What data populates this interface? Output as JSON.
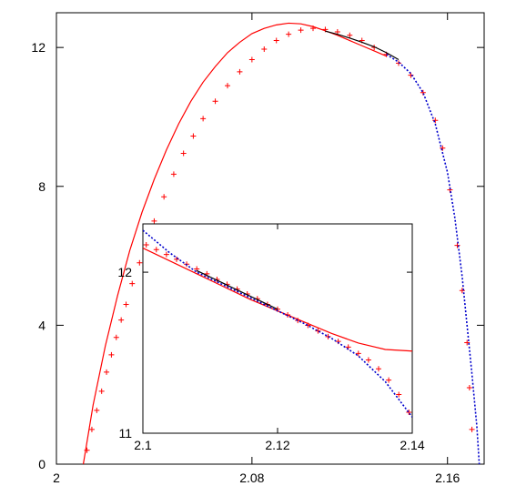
{
  "chart_data": [
    {
      "type": "line",
      "panel": "main",
      "title": "",
      "xlabel": "",
      "ylabel": "",
      "xlim": [
        2.0,
        2.175
      ],
      "ylim": [
        0,
        13
      ],
      "xticks": [
        2.0,
        2.08,
        2.16
      ],
      "xtick_labels": [
        "2",
        "2.08",
        "2.16"
      ],
      "yticks": [
        0,
        4,
        8,
        12
      ],
      "ytick_labels": [
        "0",
        "4",
        "8",
        "12"
      ],
      "grid": false,
      "legend": "none",
      "series": [
        {
          "style": "markers-plus",
          "color": "#ff0000",
          "x": [
            2.0125,
            2.0145,
            2.0165,
            2.0185,
            2.0205,
            2.0225,
            2.0245,
            2.0265,
            2.0285,
            2.031,
            2.034,
            2.037,
            2.04,
            2.044,
            2.048,
            2.052,
            2.056,
            2.06,
            2.065,
            2.07,
            2.075,
            2.08,
            2.085,
            2.09,
            2.095,
            2.1,
            2.105,
            2.11,
            2.115,
            2.12,
            2.125,
            2.13,
            2.135,
            2.14,
            2.145,
            2.15,
            2.155,
            2.158,
            2.161,
            2.164,
            2.166,
            2.168,
            2.169,
            2.17
          ],
          "y": [
            0.4,
            1.0,
            1.55,
            2.1,
            2.65,
            3.15,
            3.65,
            4.15,
            4.6,
            5.2,
            5.8,
            6.4,
            7.0,
            7.7,
            8.35,
            8.95,
            9.45,
            9.95,
            10.45,
            10.9,
            11.3,
            11.65,
            11.95,
            12.2,
            12.38,
            12.5,
            12.55,
            12.52,
            12.45,
            12.35,
            12.2,
            12.0,
            11.8,
            11.55,
            11.2,
            10.7,
            9.9,
            9.1,
            7.9,
            6.3,
            5.0,
            3.5,
            2.2,
            1.0
          ]
        },
        {
          "style": "solid",
          "color": "#ff0000",
          "x": [
            2.011,
            2.015,
            2.02,
            2.025,
            2.03,
            2.035,
            2.04,
            2.045,
            2.05,
            2.055,
            2.06,
            2.065,
            2.07,
            2.075,
            2.08,
            2.085,
            2.09,
            2.095,
            2.1,
            2.105,
            2.11,
            2.115,
            2.12,
            2.125,
            2.13,
            2.135
          ],
          "y": [
            0.0,
            1.7,
            3.4,
            4.85,
            6.15,
            7.25,
            8.2,
            9.05,
            9.8,
            10.45,
            11.0,
            11.45,
            11.85,
            12.15,
            12.4,
            12.55,
            12.65,
            12.7,
            12.68,
            12.6,
            12.48,
            12.35,
            12.2,
            12.05,
            11.9,
            11.75
          ]
        },
        {
          "style": "solid",
          "color": "#000000",
          "x": [
            2.11,
            2.115,
            2.12,
            2.125,
            2.13,
            2.135,
            2.14
          ],
          "y": [
            12.47,
            12.38,
            12.27,
            12.15,
            12.02,
            11.85,
            11.65
          ]
        },
        {
          "style": "dotted",
          "color": "#0000cc",
          "x": [
            2.135,
            2.14,
            2.145,
            2.15,
            2.155,
            2.16,
            2.163,
            2.166,
            2.168,
            2.17,
            2.172,
            2.173
          ],
          "y": [
            11.8,
            11.58,
            11.25,
            10.7,
            9.8,
            8.4,
            7.1,
            5.4,
            4.0,
            2.6,
            1.1,
            0.0
          ]
        }
      ]
    },
    {
      "type": "line",
      "panel": "inset",
      "title": "",
      "xlabel": "",
      "ylabel": "",
      "xlim": [
        2.1,
        2.14
      ],
      "ylim": [
        11,
        12.3
      ],
      "xticks": [
        2.1,
        2.12,
        2.14
      ],
      "xtick_labels": [
        "2.1",
        "2.12",
        "2.14"
      ],
      "yticks": [
        11,
        12
      ],
      "ytick_labels": [
        "11",
        "12"
      ],
      "grid": false,
      "legend": "none",
      "series": [
        {
          "style": "markers-plus",
          "color": "#ff0000",
          "x": [
            2.1005,
            2.102,
            2.1035,
            2.105,
            2.1065,
            2.108,
            2.1095,
            2.111,
            2.1125,
            2.114,
            2.1155,
            2.117,
            2.1185,
            2.12,
            2.1215,
            2.123,
            2.1245,
            2.126,
            2.1275,
            2.129,
            2.1305,
            2.132,
            2.1335,
            2.135,
            2.1365,
            2.138,
            2.1395
          ],
          "y": [
            12.17,
            12.14,
            12.11,
            12.08,
            12.05,
            12.02,
            11.99,
            11.955,
            11.925,
            11.895,
            11.865,
            11.835,
            11.8,
            11.77,
            11.735,
            11.7,
            11.67,
            11.635,
            11.6,
            11.57,
            11.535,
            11.495,
            11.455,
            11.4,
            11.33,
            11.24,
            11.13
          ]
        },
        {
          "style": "solid",
          "color": "#ff0000",
          "x": [
            2.1,
            2.104,
            2.108,
            2.112,
            2.116,
            2.12,
            2.124,
            2.128,
            2.132,
            2.136,
            2.14
          ],
          "y": [
            12.15,
            12.07,
            11.99,
            11.91,
            11.83,
            11.76,
            11.69,
            11.62,
            11.56,
            11.52,
            11.51
          ]
        },
        {
          "style": "solid",
          "color": "#000000",
          "x": [
            2.108,
            2.11,
            2.112,
            2.114,
            2.116,
            2.118,
            2.12
          ],
          "y": [
            12.01,
            11.97,
            11.93,
            11.89,
            11.85,
            11.81,
            11.77
          ]
        },
        {
          "style": "dotted",
          "color": "#0000cc",
          "x": [
            2.1,
            2.104,
            2.108,
            2.112,
            2.116,
            2.12,
            2.124,
            2.128,
            2.132,
            2.136,
            2.14
          ],
          "y": [
            12.26,
            12.12,
            12.0,
            11.92,
            11.84,
            11.76,
            11.68,
            11.59,
            11.48,
            11.32,
            11.1
          ]
        }
      ]
    }
  ]
}
